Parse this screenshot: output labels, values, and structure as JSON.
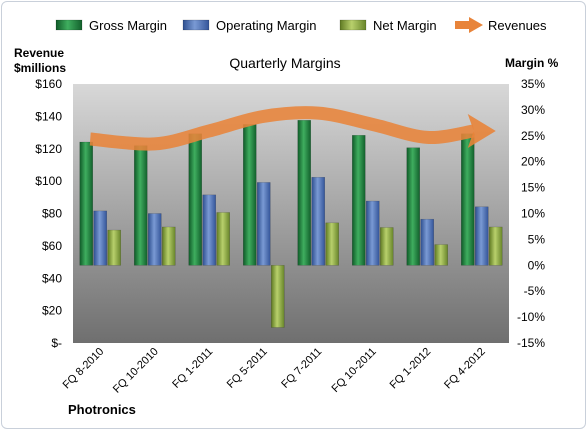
{
  "chart_data": {
    "type": "bar",
    "title": "Quarterly Margins",
    "company_label": "Photronics",
    "categories": [
      "FQ 8-2010",
      "FQ 10-2010",
      "FQ 1-2011",
      "FQ 5-2011",
      "FQ 7-2011",
      "FQ 10-2011",
      "FQ 1-2012",
      "FQ 4-2012"
    ],
    "series": [
      {
        "name": "Gross Margin",
        "type": "bar",
        "axis": "right",
        "unit": "%",
        "values": [
          23.8,
          23.1,
          25.4,
          27.2,
          28.0,
          25.1,
          22.7,
          25.4
        ],
        "color": "#1e7a3c"
      },
      {
        "name": "Operating Margin",
        "type": "bar",
        "axis": "right",
        "unit": "%",
        "values": [
          10.5,
          10.0,
          13.6,
          16.0,
          17.0,
          12.4,
          8.9,
          11.3
        ],
        "color": "#4a6fb0"
      },
      {
        "name": "Net Margin",
        "type": "bar",
        "axis": "right",
        "unit": "%",
        "values": [
          6.8,
          7.4,
          10.2,
          -12.0,
          8.2,
          7.3,
          4.0,
          7.4
        ],
        "color": "#8aa640"
      },
      {
        "name": "Revenues",
        "type": "line",
        "axis": "left",
        "unit": "$millions",
        "values": [
          126,
          123,
          131,
          140,
          142,
          135,
          127,
          131
        ],
        "color": "#e8843a"
      }
    ],
    "y_left": {
      "label_line1": "Revenue",
      "label_line2": "$millions",
      "min": 0,
      "max": 160,
      "step": 20,
      "ticks": [
        "$-",
        "$20",
        "$40",
        "$60",
        "$80",
        "$100",
        "$120",
        "$140",
        "$160"
      ]
    },
    "y_right": {
      "label": "Margin %",
      "min": -15,
      "max": 35,
      "step": 5,
      "ticks": [
        "-15%",
        "-10%",
        "-5%",
        "0%",
        "5%",
        "10%",
        "15%",
        "20%",
        "25%",
        "30%",
        "35%"
      ]
    },
    "legend_position": "top",
    "grid": false
  }
}
